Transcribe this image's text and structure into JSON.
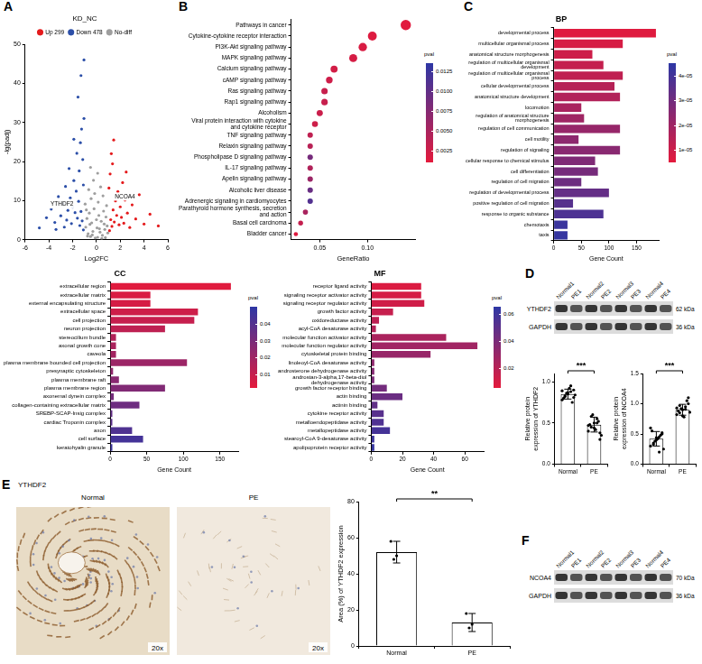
{
  "chart_data": [
    {
      "panel": "A",
      "type": "scatter",
      "title": "KD_NC",
      "x_label": "Log2FC",
      "y_label": "-lg(padj)",
      "xlim": [
        -6,
        6
      ],
      "xticks": [
        -6,
        -4,
        -2,
        0,
        2,
        4,
        6
      ],
      "ylim": [
        0,
        50
      ],
      "yticks": [
        0,
        10,
        20,
        30,
        40,
        50
      ],
      "grid": false,
      "legend": "top",
      "series": [
        {
          "name": "Up 299",
          "color": "#e41a1c",
          "x": [
            1.1,
            1.2,
            1.3,
            1.4,
            1.5,
            1.6,
            1.7,
            1.8,
            1.9,
            2.0,
            2.1,
            2.2,
            2.3,
            2.4,
            2.6,
            2.8,
            3.0,
            3.3,
            3.6,
            4.0,
            4.5,
            1.15,
            1.35,
            1.25,
            1.05,
            1.45,
            2.5,
            5.2
          ],
          "values": [
            2.3,
            5.1,
            3.4,
            7.6,
            4.5,
            9.9,
            6.2,
            12.3,
            3.8,
            8.4,
            5.7,
            14.6,
            4.2,
            10.1,
            6.8,
            3.1,
            8.9,
            5.3,
            11.5,
            4.0,
            6.5,
            16.8,
            19.4,
            22.0,
            13.2,
            25.5,
            17.3,
            3.5
          ]
        },
        {
          "name": "Down 478",
          "color": "#2c4fa8",
          "x": [
            -1.1,
            -1.2,
            -1.3,
            -1.4,
            -1.5,
            -1.6,
            -1.7,
            -1.8,
            -1.9,
            -2.0,
            -2.1,
            -2.2,
            -2.3,
            -2.4,
            -2.5,
            -2.6,
            -2.8,
            -3.0,
            -3.2,
            -3.5,
            -3.8,
            -4.2,
            -1.15,
            -1.35,
            -1.25,
            -1.45,
            -1.05,
            -1.65,
            -2.7,
            -1.1,
            -1.55,
            -1.3,
            -1.9,
            -3.4,
            -4.8,
            -1.05
          ],
          "values": [
            2.5,
            4.8,
            7.2,
            3.6,
            9.8,
            5.5,
            12.4,
            6.9,
            15.1,
            8.3,
            4.1,
            10.7,
            18.2,
            7.5,
            5.0,
            13.6,
            9.2,
            6.1,
            11.0,
            4.4,
            7.8,
            5.6,
            20.5,
            24.8,
            28.3,
            17.6,
            31.0,
            22.1,
            3.2,
            14.0,
            36.5,
            42.0,
            25.7,
            2.6,
            3.0,
            46.0
          ]
        },
        {
          "name": "No-diff",
          "color": "#9e9e9e",
          "x": [
            -0.9,
            -0.7,
            -0.5,
            -0.3,
            -0.1,
            0.1,
            0.3,
            0.5,
            0.7,
            0.9,
            -0.8,
            -0.6,
            -0.4,
            -0.2,
            0,
            0.2,
            0.4,
            0.6,
            0.8,
            -0.95,
            -0.45,
            0.15,
            0.55,
            0.85,
            -0.65,
            0.35,
            -0.25,
            0.05,
            -0.35,
            0.45,
            -0.75,
            0.75,
            0.25,
            -0.55,
            0.65,
            -0.15,
            0.95,
            -0.85,
            0.1,
            -0.5
          ],
          "values": [
            3.2,
            1.5,
            0.8,
            2.1,
            0.4,
            0.6,
            1.9,
            1.1,
            2.6,
            3.5,
            5.4,
            6.8,
            4.3,
            7.9,
            5.1,
            6.2,
            4.7,
            7.3,
            5.8,
            9.1,
            10.5,
            9.6,
            11.2,
            8.7,
            12.8,
            13.5,
            15.2,
            3.0,
            1.2,
            0.3,
            0.9,
            0.5,
            2.8,
            3.9,
            4.0,
            11.8,
            1.7,
            7.6,
            17.0,
            18.5
          ]
        }
      ],
      "annotations": [
        {
          "text": "YTHDF2",
          "x": -2.9,
          "y": 9
        },
        {
          "text": "NCOA4",
          "x": 2.4,
          "y": 11
        }
      ]
    },
    {
      "panel": "B",
      "type": "bubble",
      "x_label": "GeneRatio",
      "categories": [
        "Pathways in cancer",
        "Cytokine-cytokine receptor interaction",
        "PI3K-Akt signaling pathway",
        "MAPK signaling pathway",
        "Calcium signaling pathway",
        "cAMP signaling pathway",
        "Ras signaling pathway",
        "Rap1 signaling pathway",
        "Alcoholism",
        "Viral protein interaction with cytokine and cytokine receptor",
        "TNF signaling pathway",
        "Relaxin signaling pathway",
        "Phospholipase D signaling pathway",
        "IL-17 signaling pathway",
        "Apelin signaling pathway",
        "Alcoholic liver disease",
        "Adrenergic signaling in cardiomyocytes",
        "Parathyroid hormone synthesis, secretion and action",
        "Basal cell carcinoma",
        "Bladder cancer"
      ],
      "values": [
        0.14,
        0.105,
        0.095,
        0.085,
        0.065,
        0.06,
        0.055,
        0.055,
        0.05,
        0.045,
        0.04,
        0.04,
        0.04,
        0.04,
        0.04,
        0.04,
        0.04,
        0.035,
        0.03,
        0.025
      ],
      "sizes": [
        36,
        27,
        24,
        22,
        17,
        15,
        14,
        14,
        13,
        12,
        10,
        10,
        10,
        10,
        10,
        10,
        10,
        9,
        8,
        6
      ],
      "pvals": [
        0.0012,
        0.0015,
        0.0018,
        0.002,
        0.0022,
        0.0025,
        0.003,
        0.003,
        0.0028,
        0.0026,
        0.0035,
        0.004,
        0.0085,
        0.0045,
        0.006,
        0.0095,
        0.011,
        0.005,
        0.0032,
        0.0014
      ],
      "colorbar": {
        "title": "pval",
        "range": [
          0.001,
          0.0135
        ],
        "ticks": [
          0.0025,
          {
            "value": 0.005,
            "label": "0.0050"
          },
          0.0075,
          {
            "value": 0.01,
            "label": "0.0100"
          },
          0.0125
        ]
      },
      "xlim": [
        0.02,
        0.15
      ],
      "xticks": [
        0.05,
        {
          "value": 0.1,
          "label": "0.10"
        }
      ],
      "grid": false
    },
    {
      "panel": "C",
      "type": "bar",
      "orientation": "horizontal",
      "title": "BP",
      "x_label": "Gene Count",
      "categories": [
        "developmental process",
        "multicellular organismal process",
        "anatomical structure morphogenesis",
        "regulation of multicellular organismal development",
        "regulation of multicellular organismal process",
        "cellular developmental process",
        "anatomical structure development",
        "locomotion",
        "regulation of anatomical structure morphogenesis",
        "regulation of cell communication",
        "cell motility",
        "regulation of signaling",
        "cellular response to chemical stimulus",
        "cell differentiation",
        "regulation of cell migration",
        "regulation of developmental process",
        "positive regulation of cell migration",
        "response to organic substance",
        "chemotaxis",
        "taxis"
      ],
      "values": [
        185,
        125,
        70,
        90,
        125,
        110,
        120,
        50,
        55,
        120,
        45,
        120,
        75,
        80,
        50,
        100,
        35,
        90,
        25,
        25
      ],
      "pvals": [
        6e-06,
        8e-06,
        1e-05,
        1.2e-05,
        1.3e-05,
        1.5e-05,
        1.6e-05,
        1.8e-05,
        2e-05,
        2.2e-05,
        2.4e-05,
        2.5e-05,
        2.7e-05,
        2.9e-05,
        3.1e-05,
        3.3e-05,
        3.6e-05,
        3.8e-05,
        4.2e-05,
        4.3e-05
      ],
      "colorbar": {
        "title": "pval",
        "range": [
          5e-06,
          4.5e-05
        ],
        "ticks": [
          {
            "value": 1e-05,
            "label": "1e-05"
          },
          {
            "value": 2e-05,
            "label": "2e-05"
          },
          {
            "value": 3e-05,
            "label": "3e-05"
          },
          {
            "value": 4e-05,
            "label": "4e-05"
          }
        ]
      },
      "xlim": [
        0,
        190
      ],
      "xticks": [
        0,
        50,
        100,
        150
      ],
      "grid": false
    },
    {
      "type": "bar",
      "orientation": "horizontal",
      "title": "CC",
      "x_label": "Gene Count",
      "categories": [
        "extracellular region",
        "extracellular matrix",
        "external encapsulating structure",
        "extracellular space",
        "cell projection",
        "neuron projection",
        "stereocilium bundle",
        "axonal growth cone",
        "caveola",
        "plasma membrane bounded cell projection",
        "presynaptic cytoskeleton",
        "plasma membrane raft",
        "plasma membrane region",
        "axonemal dynein complex",
        "collagen-containing extracellular matrix",
        "SREBP-SCAP-Insig complex",
        "cardiac Troponin complex",
        "axon",
        "cell surface",
        "keratohyalin granule"
      ],
      "values": [
        165,
        55,
        55,
        120,
        115,
        75,
        8,
        8,
        8,
        105,
        4,
        12,
        75,
        5,
        40,
        3,
        3,
        30,
        45,
        3
      ],
      "pvals": [
        0.003,
        0.005,
        0.006,
        0.008,
        0.01,
        0.012,
        0.015,
        0.017,
        0.019,
        0.021,
        0.024,
        0.026,
        0.028,
        0.031,
        0.033,
        0.036,
        0.038,
        0.041,
        0.044,
        0.046
      ],
      "colorbar": {
        "title": "pval",
        "range": [
          0.002,
          0.05
        ],
        "ticks": [
          0.01,
          0.02,
          0.03,
          0.04
        ]
      },
      "xlim": [
        0,
        175
      ],
      "xticks": [
        0,
        50,
        100,
        150
      ],
      "grid": false
    },
    {
      "type": "bar",
      "orientation": "horizontal",
      "title": "MF",
      "x_label": "Gene Count",
      "categories": [
        "receptor ligand activity",
        "signaling receptor activator activity",
        "signaling receptor regulator activity",
        "growth factor activity",
        "oxidoreductase activity",
        "acyl-CoA desaturase activity",
        "molecular function activator activity",
        "molecular function regulator activity",
        "cytoskeletal protein binding",
        "linoleoyl-CoA desaturase activity",
        "androsterone dehydrogenase activity",
        "androstan-3-alpha,17-beta-diol dehydrogenase activity",
        "growth factor receptor binding",
        "actin binding",
        "actinin binding",
        "cytokine receptor activity",
        "metalloendopeptidase activity",
        "metallopeptidase activity",
        "stearoyl-CoA 9-desaturase activity",
        "apolipoprotein receptor activity"
      ],
      "values": [
        32,
        32,
        34,
        14,
        5,
        3,
        48,
        68,
        38,
        2,
        2,
        2,
        10,
        20,
        4,
        8,
        8,
        12,
        2,
        2
      ],
      "pvals": [
        0.008,
        0.01,
        0.012,
        0.015,
        0.018,
        0.021,
        0.024,
        0.027,
        0.03,
        0.033,
        0.036,
        0.039,
        0.042,
        0.045,
        0.048,
        0.051,
        0.054,
        0.057,
        0.06,
        0.062
      ],
      "colorbar": {
        "title": "pval",
        "range": [
          0.005,
          0.065
        ],
        "ticks": [
          0.02,
          0.04,
          0.06
        ]
      },
      "xlim": [
        0,
        72
      ],
      "xticks": [
        0,
        20,
        40,
        60
      ],
      "grid": false
    },
    {
      "type": "bar",
      "y_label": "Relative protein expression of YTHDF2",
      "categories": [
        "Normal",
        "PE"
      ],
      "values": [
        0.85,
        0.48
      ],
      "errors": [
        0.06,
        0.09
      ],
      "points": [
        [
          0.78,
          0.82,
          0.85,
          0.88,
          0.9,
          0.8,
          0.86,
          0.92,
          0.75,
          0.84,
          0.89,
          0.83,
          0.87,
          0.95,
          0.81
        ],
        [
          0.4,
          0.45,
          0.5,
          0.55,
          0.38,
          0.48,
          0.6,
          0.42,
          0.52,
          0.35,
          0.47,
          0.58,
          0.44,
          0.5,
          0.3
        ]
      ],
      "color": "#ffffff",
      "annotation": "***",
      "ylim": [
        0,
        1.1
      ],
      "yticks": [
        {
          "value": 0,
          "label": "0.0"
        },
        {
          "value": 0.5,
          "label": "0.5"
        },
        {
          "value": 1,
          "label": "1.0"
        }
      ],
      "grid": false
    },
    {
      "type": "bar",
      "y_label": "Relative protein expression of NCOA4",
      "categories": [
        "Normal",
        "PE"
      ],
      "values": [
        0.42,
        0.9
      ],
      "errors": [
        0.12,
        0.09
      ],
      "points": [
        [
          0.3,
          0.35,
          0.4,
          0.45,
          0.5,
          0.55,
          0.38,
          0.42,
          0.48,
          0.25,
          0.6,
          0.33,
          0.44,
          0.2,
          0.52
        ],
        [
          0.82,
          0.85,
          0.9,
          0.95,
          1.0,
          0.88,
          0.92,
          0.78,
          1.05,
          0.86,
          0.93,
          0.97,
          0.8,
          0.91,
          1.1
        ]
      ],
      "color": "#ffffff",
      "annotation": "***",
      "ylim": [
        0,
        1.5
      ],
      "yticks": [
        {
          "value": 0,
          "label": "0.0"
        },
        {
          "value": 0.5,
          "label": "0.5"
        },
        {
          "value": 1,
          "label": "1.0"
        },
        {
          "value": 1.5,
          "label": "1.5"
        }
      ],
      "grid": false
    },
    {
      "type": "bar",
      "y_label": "Area (%) of YTHDF2 expression",
      "categories": [
        "Normal",
        "PE"
      ],
      "values": [
        52,
        13
      ],
      "errors": [
        6,
        5
      ],
      "points": [
        [
          58,
          48,
          50
        ],
        [
          18,
          10,
          12
        ]
      ],
      "color": "#ffffff",
      "annotation": "**",
      "ylim": [
        0,
        80
      ],
      "yticks": [
        0,
        20,
        40,
        60,
        80
      ],
      "grid": false
    }
  ],
  "blots": [
    {
      "panel": "D",
      "lanes": [
        "Normal1",
        "PE1",
        "Normal2",
        "PE2",
        "Normal3",
        "PE3",
        "Normal4",
        "PE4"
      ],
      "bands": [
        {
          "label": "YTHDF2",
          "size": "62 kDa"
        },
        {
          "label": "GAPDH",
          "size": "36 kDa"
        }
      ]
    },
    {
      "panel": "F",
      "lanes": [
        "Normal1",
        "PE1",
        "Normal2",
        "PE2",
        "Normal3",
        "PE3",
        "Normal4",
        "PE4"
      ],
      "bands": [
        {
          "label": "NCOA4",
          "size": "70 kDa"
        },
        {
          "label": "GAPDH",
          "size": "36 kDa"
        }
      ]
    }
  ],
  "ihc": {
    "panel": "E",
    "stain": "YTHDF2",
    "images": [
      {
        "label": "Normal",
        "magnification": "20x"
      },
      {
        "label": "PE",
        "magnification": "20x"
      }
    ]
  }
}
